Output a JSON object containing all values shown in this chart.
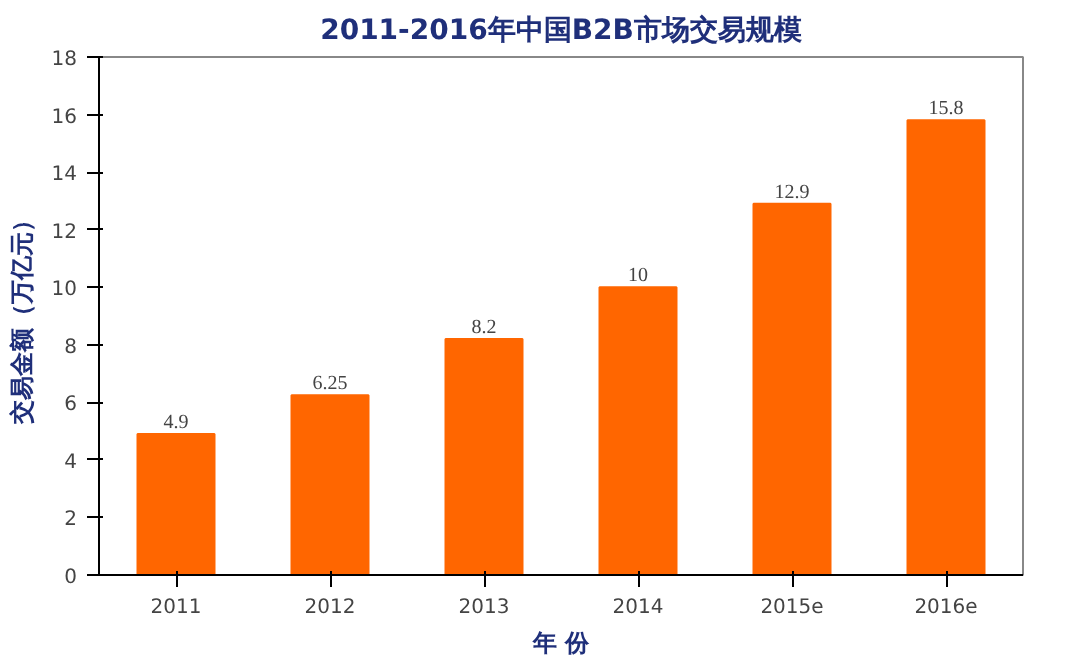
{
  "chart_data": {
    "type": "bar",
    "title": "2011-2016年中国B2B市场交易规模",
    "xlabel": "年 份",
    "ylabel": "交易金额（万亿元）",
    "categories": [
      "2011",
      "2012",
      "2013",
      "2014",
      "2015e",
      "2016e"
    ],
    "values": [
      4.9,
      6.25,
      8.2,
      10,
      12.9,
      15.8
    ],
    "color": "#ff6600",
    "ylim": [
      0,
      18
    ],
    "yticks": [
      0,
      2,
      4,
      6,
      8,
      10,
      12,
      14,
      16,
      18
    ],
    "grid": false,
    "data_labels": true
  }
}
